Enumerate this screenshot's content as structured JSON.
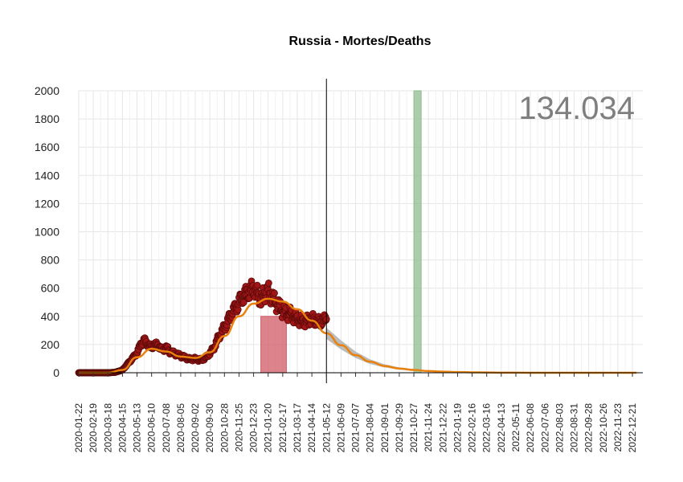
{
  "chart_data": {
    "type": "line",
    "title": "Russia - Mortes/Deaths",
    "annotation": "134.034",
    "ylim": [
      0,
      2000
    ],
    "yticks": [
      0,
      200,
      400,
      600,
      800,
      1000,
      1200,
      1400,
      1600,
      1800,
      2000
    ],
    "xlim": [
      "2020-01-22",
      "2023-01-10"
    ],
    "xticks": [
      "2020-01-22",
      "2020-02-19",
      "2020-03-18",
      "2020-04-15",
      "2020-05-13",
      "2020-06-10",
      "2020-07-08",
      "2020-08-05",
      "2020-09-02",
      "2020-09-30",
      "2020-10-28",
      "2020-11-25",
      "2020-12-23",
      "2021-01-20",
      "2021-02-17",
      "2021-03-17",
      "2021-04-14",
      "2021-05-12",
      "2021-06-09",
      "2021-07-07",
      "2021-08-04",
      "2021-09-01",
      "2021-09-29",
      "2021-10-27",
      "2021-11-24",
      "2021-12-22",
      "2022-01-19",
      "2022-02-16",
      "2022-03-16",
      "2022-04-13",
      "2022-05-11",
      "2022-06-08",
      "2022-07-06",
      "2022-08-03",
      "2022-08-31",
      "2022-09-28",
      "2022-10-26",
      "2022-11-23",
      "2022-12-21"
    ],
    "grid": true,
    "vline_date": "2021-05-12",
    "shaded_regions": [
      {
        "start": "2021-01-06",
        "end": "2021-02-24",
        "height": 400,
        "color": "#d05a66"
      },
      {
        "start": "2021-10-27",
        "end": "2021-11-10",
        "height": 2000,
        "color": "#8fbc8f"
      }
    ],
    "daily_deaths": [
      {
        "x": "2020-01-22",
        "y": 0
      },
      {
        "x": "2020-03-18",
        "y": 0
      },
      {
        "x": "2020-04-01",
        "y": 3
      },
      {
        "x": "2020-04-15",
        "y": 20
      },
      {
        "x": "2020-04-29",
        "y": 80
      },
      {
        "x": "2020-05-13",
        "y": 140
      },
      {
        "x": "2020-05-20",
        "y": 200
      },
      {
        "x": "2020-05-27",
        "y": 230
      },
      {
        "x": "2020-06-03",
        "y": 200
      },
      {
        "x": "2020-06-10",
        "y": 180
      },
      {
        "x": "2020-06-17",
        "y": 200
      },
      {
        "x": "2020-06-24",
        "y": 190
      },
      {
        "x": "2020-07-01",
        "y": 160
      },
      {
        "x": "2020-07-08",
        "y": 180
      },
      {
        "x": "2020-07-15",
        "y": 150
      },
      {
        "x": "2020-07-22",
        "y": 140
      },
      {
        "x": "2020-07-29",
        "y": 130
      },
      {
        "x": "2020-08-05",
        "y": 120
      },
      {
        "x": "2020-08-12",
        "y": 110
      },
      {
        "x": "2020-08-19",
        "y": 100
      },
      {
        "x": "2020-08-26",
        "y": 95
      },
      {
        "x": "2020-09-02",
        "y": 100
      },
      {
        "x": "2020-09-09",
        "y": 90
      },
      {
        "x": "2020-09-16",
        "y": 95
      },
      {
        "x": "2020-09-23",
        "y": 110
      },
      {
        "x": "2020-09-30",
        "y": 140
      },
      {
        "x": "2020-10-07",
        "y": 170
      },
      {
        "x": "2020-10-14",
        "y": 230
      },
      {
        "x": "2020-10-21",
        "y": 280
      },
      {
        "x": "2020-10-28",
        "y": 320
      },
      {
        "x": "2020-11-04",
        "y": 370
      },
      {
        "x": "2020-11-11",
        "y": 420
      },
      {
        "x": "2020-11-18",
        "y": 460
      },
      {
        "x": "2020-11-25",
        "y": 500
      },
      {
        "x": "2020-12-02",
        "y": 540
      },
      {
        "x": "2020-12-09",
        "y": 560
      },
      {
        "x": "2020-12-16",
        "y": 580
      },
      {
        "x": "2020-12-23",
        "y": 600
      },
      {
        "x": "2020-12-30",
        "y": 560
      },
      {
        "x": "2021-01-06",
        "y": 520
      },
      {
        "x": "2021-01-13",
        "y": 560
      },
      {
        "x": "2021-01-20",
        "y": 580
      },
      {
        "x": "2021-01-27",
        "y": 540
      },
      {
        "x": "2021-02-03",
        "y": 500
      },
      {
        "x": "2021-02-10",
        "y": 470
      },
      {
        "x": "2021-02-17",
        "y": 440
      },
      {
        "x": "2021-02-24",
        "y": 420
      },
      {
        "x": "2021-03-03",
        "y": 420
      },
      {
        "x": "2021-03-10",
        "y": 400
      },
      {
        "x": "2021-03-17",
        "y": 380
      },
      {
        "x": "2021-03-24",
        "y": 370
      },
      {
        "x": "2021-03-31",
        "y": 360
      },
      {
        "x": "2021-04-07",
        "y": 370
      },
      {
        "x": "2021-04-14",
        "y": 380
      },
      {
        "x": "2021-04-21",
        "y": 370
      },
      {
        "x": "2021-04-28",
        "y": 360
      },
      {
        "x": "2021-05-05",
        "y": 370
      },
      {
        "x": "2021-05-12",
        "y": 380
      }
    ],
    "fitted_curve": [
      {
        "x": "2020-01-22",
        "y": 0
      },
      {
        "x": "2020-03-18",
        "y": 0
      },
      {
        "x": "2020-04-15",
        "y": 20
      },
      {
        "x": "2020-05-13",
        "y": 110
      },
      {
        "x": "2020-06-10",
        "y": 170
      },
      {
        "x": "2020-07-08",
        "y": 150
      },
      {
        "x": "2020-08-05",
        "y": 115
      },
      {
        "x": "2020-09-02",
        "y": 105
      },
      {
        "x": "2020-09-30",
        "y": 145
      },
      {
        "x": "2020-10-28",
        "y": 260
      },
      {
        "x": "2020-11-25",
        "y": 400
      },
      {
        "x": "2020-12-23",
        "y": 490
      },
      {
        "x": "2021-01-20",
        "y": 525
      },
      {
        "x": "2021-02-17",
        "y": 505
      },
      {
        "x": "2021-03-17",
        "y": 450
      },
      {
        "x": "2021-04-14",
        "y": 370
      },
      {
        "x": "2021-05-12",
        "y": 280
      },
      {
        "x": "2021-06-09",
        "y": 195
      },
      {
        "x": "2021-07-07",
        "y": 125
      },
      {
        "x": "2021-08-04",
        "y": 78
      },
      {
        "x": "2021-09-01",
        "y": 48
      },
      {
        "x": "2021-09-29",
        "y": 30
      },
      {
        "x": "2021-10-27",
        "y": 20
      },
      {
        "x": "2021-11-24",
        "y": 12
      },
      {
        "x": "2021-12-22",
        "y": 8
      },
      {
        "x": "2022-01-19",
        "y": 5
      },
      {
        "x": "2022-02-16",
        "y": 3
      },
      {
        "x": "2022-03-16",
        "y": 2
      },
      {
        "x": "2022-04-13",
        "y": 1
      },
      {
        "x": "2022-06-08",
        "y": 0
      },
      {
        "x": "2022-12-29",
        "y": 0
      }
    ],
    "forecast_band": [
      {
        "x": "2021-05-12",
        "lo": 240,
        "hi": 320
      },
      {
        "x": "2021-06-09",
        "lo": 165,
        "hi": 230
      },
      {
        "x": "2021-07-07",
        "lo": 105,
        "hi": 150
      },
      {
        "x": "2021-08-04",
        "lo": 62,
        "hi": 95
      },
      {
        "x": "2021-09-01",
        "lo": 38,
        "hi": 60
      },
      {
        "x": "2021-09-29",
        "lo": 22,
        "hi": 38
      },
      {
        "x": "2021-10-27",
        "lo": 14,
        "hi": 26
      },
      {
        "x": "2021-11-24",
        "lo": 8,
        "hi": 16
      },
      {
        "x": "2021-12-22",
        "lo": 5,
        "hi": 11
      },
      {
        "x": "2022-01-19",
        "lo": 3,
        "hi": 7
      },
      {
        "x": "2022-03-16",
        "lo": 1,
        "hi": 3
      },
      {
        "x": "2022-04-13",
        "lo": 0,
        "hi": 2
      }
    ],
    "colors": {
      "points_fill": "#a01515",
      "points_stroke": "#5a0a0a",
      "fit_line": "#e8820c",
      "band": "#b0b0b0",
      "grid": "#e6e6e6",
      "vline": "#000000",
      "annotation": "#7f7f7f"
    }
  }
}
